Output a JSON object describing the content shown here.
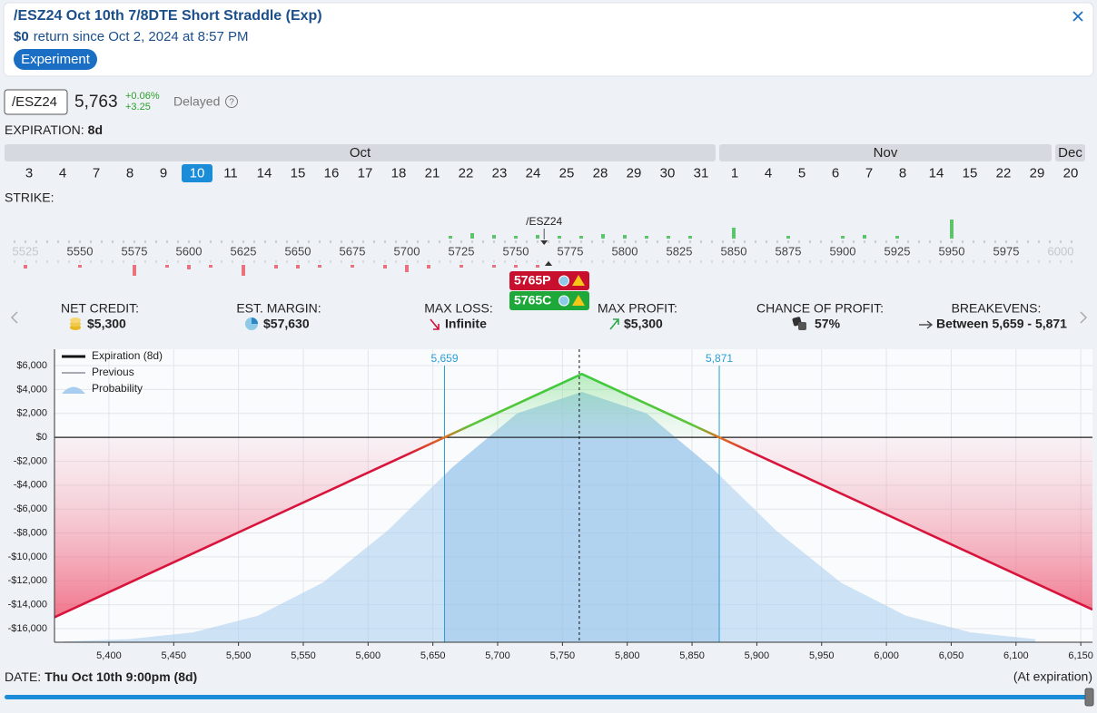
{
  "header": {
    "title": "/ESZ24 Oct 10th 7/8DTE Short Straddle (Exp)",
    "return_value": "$0",
    "return_text": "return since Oct 2, 2024 at 8:57 PM",
    "badge": "Experiment"
  },
  "ticker": {
    "symbol": "/ESZ24",
    "price": "5,763",
    "change_pct": "+0.06%",
    "change_abs": "+3.25",
    "status": "Delayed",
    "help": "?"
  },
  "expiration": {
    "label": "EXPIRATION:",
    "value": "8d",
    "months": [
      {
        "name": "Oct",
        "days": [
          3,
          4,
          7,
          8,
          9,
          10,
          11,
          14,
          15,
          16,
          17,
          18,
          21,
          22,
          23,
          24,
          25,
          28,
          29,
          30,
          31
        ]
      },
      {
        "name": "Nov",
        "days": [
          1,
          4,
          5,
          6,
          7,
          8,
          14,
          15,
          22,
          29
        ]
      },
      {
        "name": "Dec",
        "days": [
          20
        ]
      }
    ],
    "selected": {
      "month": 0,
      "day": 5
    }
  },
  "strikes": {
    "label": "STRIKE:",
    "ticks": [
      5525,
      5550,
      5575,
      5600,
      5625,
      5650,
      5675,
      5700,
      5725,
      5750,
      5775,
      5800,
      5825,
      5850,
      5875,
      5900,
      5925,
      5950,
      5975,
      6000
    ],
    "underlying_label": "/ESZ24",
    "underlying": 5763,
    "open_interest": {
      "calls": {
        "strikes": [
          5720,
          5730,
          5740,
          5750,
          5760,
          5770,
          5780,
          5790,
          5800,
          5810,
          5820,
          5830,
          5850,
          5875,
          5900,
          5910,
          5925,
          5950
        ],
        "values": [
          3,
          6,
          4,
          3,
          4,
          3,
          3,
          5,
          4,
          3,
          3,
          3,
          12,
          3,
          3,
          4,
          3,
          21
        ],
        "color": "#5cc46a"
      },
      "puts": {
        "strikes": [
          5525,
          5550,
          5575,
          5590,
          5600,
          5610,
          5625,
          5640,
          5650,
          5660,
          5675,
          5690,
          5700,
          5710,
          5725,
          5740,
          5750,
          5760
        ],
        "values": [
          4,
          3,
          12,
          3,
          5,
          3,
          12,
          4,
          4,
          3,
          3,
          4,
          8,
          4,
          3,
          3,
          3,
          3
        ],
        "color": "#e8737f"
      }
    },
    "legs": [
      {
        "label": "5765P",
        "strike": 5765,
        "color": "#c8102e"
      },
      {
        "label": "5765C",
        "strike": 5765,
        "color": "#1fa83a"
      }
    ]
  },
  "stats": [
    {
      "label": "NET CREDIT:",
      "value": "$5,300"
    },
    {
      "label": "EST. MARGIN:",
      "value": "$57,630"
    },
    {
      "label": "MAX LOSS:",
      "value": "Infinite"
    },
    {
      "label": "MAX PROFIT:",
      "value": "$5,300"
    },
    {
      "label": "CHANCE OF PROFIT:",
      "value": "57%"
    },
    {
      "label": "BREAKEVENS:",
      "value": "Between 5,659 - 5,871"
    }
  ],
  "chart_data": {
    "type": "line",
    "xlim": [
      5358,
      6159
    ],
    "ylim": [
      -17140,
      7370
    ],
    "xticks": [
      {
        "value": 5400,
        "label": "5,400"
      },
      {
        "value": 5450,
        "label": "5,450"
      },
      {
        "value": 5500,
        "label": "5,500"
      },
      {
        "value": 5550,
        "label": "5,550"
      },
      {
        "value": 5600,
        "label": "5,600"
      },
      {
        "value": 5650,
        "label": "5,650"
      },
      {
        "value": 5700,
        "label": "5,700"
      },
      {
        "value": 5750,
        "label": "5,750"
      },
      {
        "value": 5800,
        "label": "5,800"
      },
      {
        "value": 5850,
        "label": "5,850"
      },
      {
        "value": 5900,
        "label": "5,900"
      },
      {
        "value": 5950,
        "label": "5,950"
      },
      {
        "value": 6000,
        "label": "6,000"
      },
      {
        "value": 6050,
        "label": "6,050"
      },
      {
        "value": 6100,
        "label": "6,100"
      },
      {
        "value": 6150,
        "label": "6,150"
      }
    ],
    "yticks": [
      {
        "value": 6000,
        "label": "$6,000"
      },
      {
        "value": 4000,
        "label": "$4,000"
      },
      {
        "value": 2000,
        "label": "$2,000"
      },
      {
        "value": 0,
        "label": "$0"
      },
      {
        "value": -2000,
        "label": "-$2,000"
      },
      {
        "value": -4000,
        "label": "-$4,000"
      },
      {
        "value": -6000,
        "label": "-$6,000"
      },
      {
        "value": -8000,
        "label": "-$8,000"
      },
      {
        "value": -10000,
        "label": "-$10,000"
      },
      {
        "value": -12000,
        "label": "-$12,000"
      },
      {
        "value": -14000,
        "label": "-$14,000"
      },
      {
        "value": -16000,
        "label": "-$16,000"
      }
    ],
    "grid": true,
    "legend": "top-left",
    "series": [
      {
        "name": "Expiration (8d)",
        "color": "#111111",
        "x": [
          5358,
          5659,
          5765,
          5871,
          6159
        ],
        "values": [
          -15050,
          0,
          5300,
          0,
          -14400
        ]
      },
      {
        "name": "Previous",
        "color": "#8a8f99",
        "x": [
          5358,
          5659,
          5765,
          5871,
          6159
        ],
        "values": [
          -15050,
          0,
          5300,
          0,
          -14400
        ]
      },
      {
        "name": "Probability",
        "color": "#a9cdee",
        "fill": true,
        "x": [
          5365,
          5415,
          5465,
          5515,
          5565,
          5615,
          5665,
          5715,
          5765,
          5815,
          5865,
          5915,
          5965,
          6015,
          6065,
          6115
        ],
        "values": [
          -17073,
          -16882,
          -16313,
          -14920,
          -12161,
          -7807,
          -2517,
          2001,
          3800,
          2001,
          -2517,
          -7807,
          -12161,
          -14920,
          -16313,
          -16882
        ]
      }
    ],
    "breakevens": [
      {
        "value": 5659,
        "label": "5,659"
      },
      {
        "value": 5871,
        "label": "5,871"
      }
    ],
    "current_price": 5763
  },
  "date_bar": {
    "label": "DATE:",
    "value": "Thu Oct 10th 9:00pm (8d)",
    "note": "(At expiration)"
  }
}
